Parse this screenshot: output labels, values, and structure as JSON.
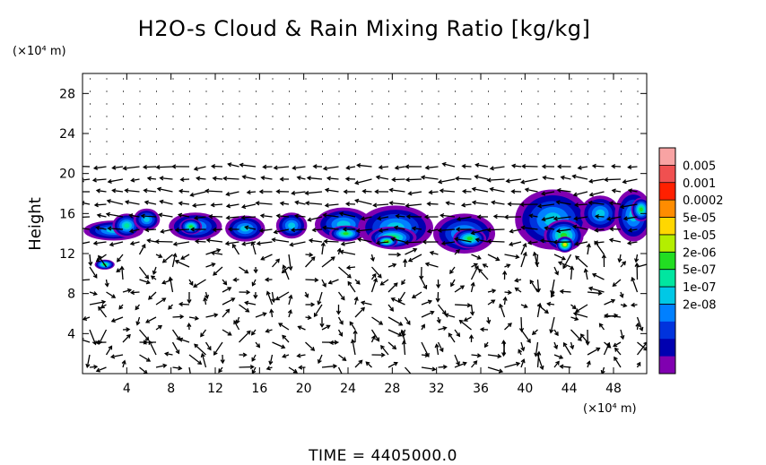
{
  "chart_data": {
    "type": "heatmap",
    "title": "H2O-s Cloud & Rain Mixing Ratio [kg/kg]",
    "ylabel": "Height",
    "x_unit": "(×10⁴ m)",
    "y_unit": "(×10⁴ m)",
    "time_label": "TIME = 4405000.0",
    "xlim": [
      0,
      51
    ],
    "ylim": [
      0,
      30
    ],
    "x_ticks": [
      4,
      8,
      12,
      16,
      20,
      24,
      28,
      32,
      36,
      40,
      44,
      48
    ],
    "y_ticks": [
      4,
      8,
      12,
      16,
      20,
      24,
      28
    ],
    "colorbar": {
      "labels": [
        "0.005",
        "0.001",
        "0.0002",
        "5e-05",
        "1e-05",
        "2e-06",
        "5e-07",
        "1e-07",
        "2e-08"
      ],
      "colors": [
        "#f8a3a3",
        "#f05050",
        "#ff2000",
        "#ff8c00",
        "#ffd700",
        "#b4ee00",
        "#22dd22",
        "#00e6a0",
        "#00c8e6",
        "#0080ff",
        "#0033dd",
        "#0000b0",
        "#8000b0"
      ]
    },
    "cloud_cells": [
      {
        "x": 2.8,
        "y": 14.3,
        "rx": 2.7,
        "ry": 1.0,
        "level": 4
      },
      {
        "x": 4.0,
        "y": 14.8,
        "rx": 1.3,
        "ry": 1.2,
        "level": 5
      },
      {
        "x": 5.8,
        "y": 15.4,
        "rx": 1.2,
        "ry": 1.1,
        "level": 4
      },
      {
        "x": 2.0,
        "y": 10.9,
        "rx": 0.9,
        "ry": 0.5,
        "level": 6
      },
      {
        "x": 10.2,
        "y": 14.7,
        "rx": 2.4,
        "ry": 1.4,
        "level": 4
      },
      {
        "x": 9.8,
        "y": 14.7,
        "rx": 1.0,
        "ry": 0.8,
        "level": 6
      },
      {
        "x": 14.7,
        "y": 14.5,
        "rx": 1.8,
        "ry": 1.3,
        "level": 4
      },
      {
        "x": 18.9,
        "y": 14.8,
        "rx": 1.4,
        "ry": 1.3,
        "level": 4
      },
      {
        "x": 23.6,
        "y": 14.9,
        "rx": 2.6,
        "ry": 1.7,
        "level": 4
      },
      {
        "x": 23.8,
        "y": 14.0,
        "rx": 1.5,
        "ry": 0.8,
        "level": 6
      },
      {
        "x": 28.3,
        "y": 14.6,
        "rx": 3.4,
        "ry": 2.2,
        "level": 4
      },
      {
        "x": 28.0,
        "y": 13.6,
        "rx": 2.2,
        "ry": 1.1,
        "level": 6
      },
      {
        "x": 27.5,
        "y": 13.2,
        "rx": 1.0,
        "ry": 0.6,
        "level": 7
      },
      {
        "x": 34.5,
        "y": 14.0,
        "rx": 2.8,
        "ry": 2.0,
        "level": 4
      },
      {
        "x": 35.0,
        "y": 13.5,
        "rx": 1.5,
        "ry": 1.0,
        "level": 6
      },
      {
        "x": 42.5,
        "y": 15.4,
        "rx": 3.4,
        "ry": 3.0,
        "level": 4
      },
      {
        "x": 43.5,
        "y": 13.8,
        "rx": 1.8,
        "ry": 1.6,
        "level": 6
      },
      {
        "x": 43.6,
        "y": 12.9,
        "rx": 0.8,
        "ry": 0.8,
        "level": 8
      },
      {
        "x": 46.8,
        "y": 16.0,
        "rx": 1.8,
        "ry": 1.8,
        "level": 4
      },
      {
        "x": 49.8,
        "y": 15.8,
        "rx": 1.7,
        "ry": 2.6,
        "level": 4
      },
      {
        "x": 50.5,
        "y": 16.4,
        "rx": 0.9,
        "ry": 1.2,
        "level": 6
      }
    ]
  }
}
